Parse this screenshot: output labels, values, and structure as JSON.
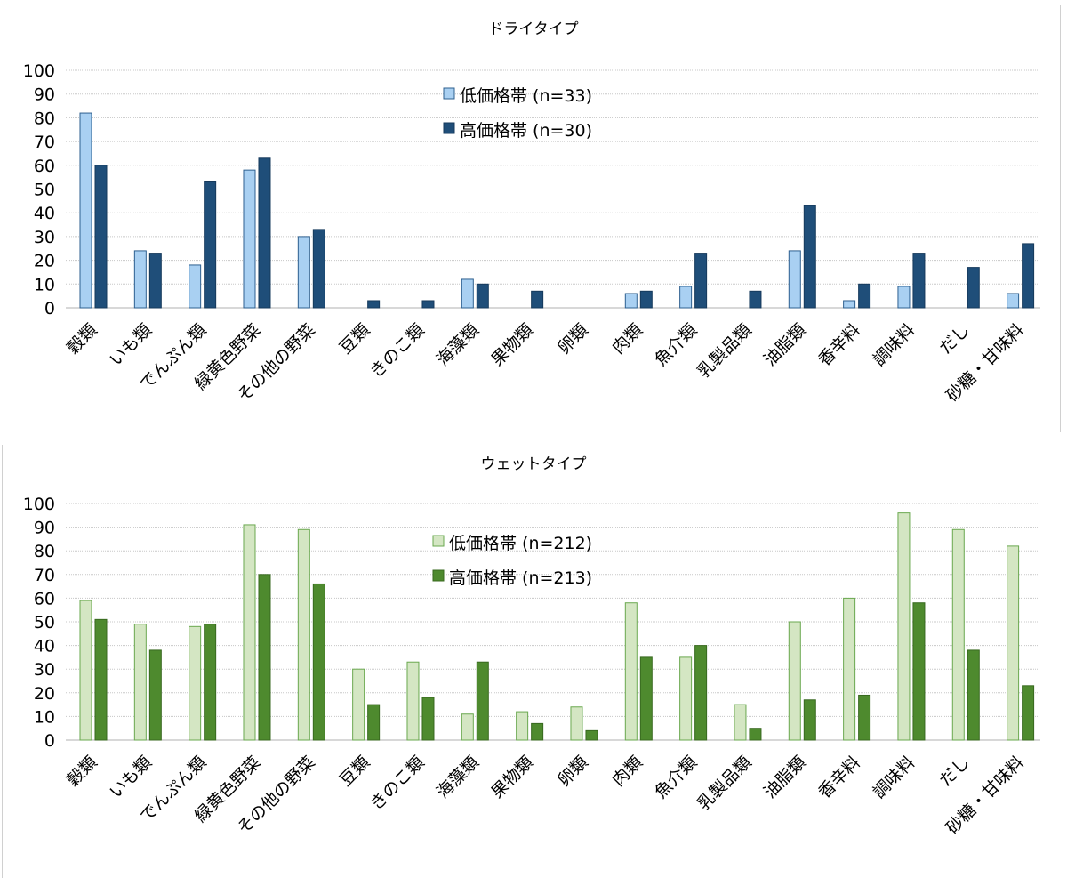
{
  "chart_data": [
    {
      "type": "bar",
      "title": "ドライタイプ",
      "categories": [
        "穀類",
        "いも類",
        "でんぷん類",
        "緑黄色野菜",
        "その他の野菜",
        "豆類",
        "きのこ類",
        "海藻類",
        "果物類",
        "卵類",
        "肉類",
        "魚介類",
        "乳製品類",
        "油脂類",
        "香辛料",
        "調味料",
        "だし",
        "砂糖・甘味料"
      ],
      "series": [
        {
          "name": "低価格帯 (n=33)",
          "values": [
            82,
            24,
            18,
            58,
            30,
            0,
            0,
            12,
            0,
            0,
            6,
            9,
            0,
            24,
            3,
            9,
            0,
            6
          ],
          "color": "#a9d0f2",
          "stroke": "#2d5f8f"
        },
        {
          "name": "高価格帯 (n=30)",
          "values": [
            60,
            23,
            53,
            63,
            33,
            3,
            3,
            10,
            7,
            0,
            7,
            23,
            7,
            43,
            10,
            23,
            17,
            27
          ],
          "color": "#1f4e79",
          "stroke": "#163a5c"
        }
      ],
      "yticks": [
        "0",
        "10",
        "20",
        "30",
        "40",
        "50",
        "60",
        "70",
        "80",
        "90",
        "100"
      ],
      "ylim": [
        0,
        100
      ],
      "grid": true,
      "legend": "top-center"
    },
    {
      "type": "bar",
      "title": "ウェットタイプ",
      "categories": [
        "穀類",
        "いも類",
        "でんぷん類",
        "緑黄色野菜",
        "その他の野菜",
        "豆類",
        "きのこ類",
        "海藻類",
        "果物類",
        "卵類",
        "肉類",
        "魚介類",
        "乳製品類",
        "油脂類",
        "香辛料",
        "調味料",
        "だし",
        "砂糖・甘味料"
      ],
      "series": [
        {
          "name": "低価格帯 (n=212)",
          "values": [
            59,
            49,
            48,
            91,
            89,
            30,
            33,
            11,
            12,
            14,
            58,
            35,
            15,
            50,
            60,
            96,
            89,
            82
          ],
          "color": "#d4e6c3",
          "stroke": "#6aa84f"
        },
        {
          "name": "高価格帯 (n=213)",
          "values": [
            51,
            38,
            49,
            70,
            66,
            15,
            18,
            33,
            7,
            4,
            35,
            40,
            5,
            17,
            19,
            58,
            38,
            23
          ],
          "color": "#4e8a2e",
          "stroke": "#38691f"
        }
      ],
      "yticks": [
        "0",
        "10",
        "20",
        "30",
        "40",
        "50",
        "60",
        "70",
        "80",
        "90",
        "100"
      ],
      "ylim": [
        0,
        100
      ],
      "grid": true,
      "legend": "top-center"
    }
  ]
}
